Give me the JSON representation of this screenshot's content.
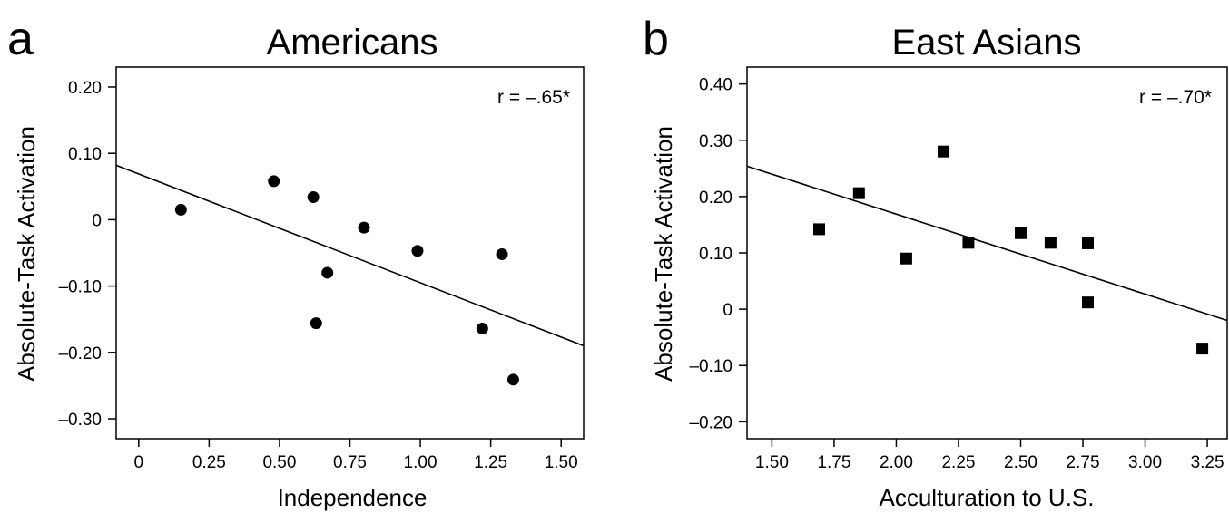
{
  "chart_data": [
    {
      "type": "scatter",
      "panel_label": "a",
      "title": "Americans",
      "xlabel": "Independence",
      "ylabel": "Absolute-Task Activation",
      "xlim": [
        -0.08,
        1.58
      ],
      "ylim": [
        -0.33,
        0.23
      ],
      "xticks": [
        0,
        0.25,
        0.5,
        0.75,
        1.0,
        1.25,
        1.5
      ],
      "xtick_labels": [
        "0",
        "0.25",
        "0.50",
        "0.75",
        "1.00",
        "1.25",
        "1.50"
      ],
      "yticks": [
        0.2,
        0.1,
        0,
        -0.1,
        -0.2,
        -0.3
      ],
      "ytick_labels": [
        "0.20",
        "0.10",
        "0",
        "–0.10",
        "–0.20",
        "–0.30"
      ],
      "marker": "circle",
      "points": [
        {
          "x": 0.15,
          "y": 0.015
        },
        {
          "x": 0.48,
          "y": 0.058
        },
        {
          "x": 0.62,
          "y": 0.034
        },
        {
          "x": 0.67,
          "y": -0.08
        },
        {
          "x": 0.63,
          "y": -0.156
        },
        {
          "x": 0.8,
          "y": -0.012
        },
        {
          "x": 0.99,
          "y": -0.047
        },
        {
          "x": 1.29,
          "y": -0.052
        },
        {
          "x": 1.22,
          "y": -0.164
        },
        {
          "x": 1.33,
          "y": -0.241
        }
      ],
      "fit_line": {
        "x1": -0.08,
        "y1": 0.082,
        "x2": 1.58,
        "y2": -0.19
      },
      "annotation": "r = –.65*",
      "grid": false
    },
    {
      "type": "scatter",
      "panel_label": "b",
      "title": "East Asians",
      "xlabel": "Acculturation to U.S.",
      "ylabel": "Absolute-Task Activation",
      "xlim": [
        1.4,
        3.33
      ],
      "ylim": [
        -0.23,
        0.43
      ],
      "xticks": [
        1.5,
        1.75,
        2.0,
        2.25,
        2.5,
        2.75,
        3.0,
        3.25
      ],
      "xtick_labels": [
        "1.50",
        "1.75",
        "2.00",
        "2.25",
        "2.50",
        "2.75",
        "3.00",
        "3.25"
      ],
      "yticks": [
        0.4,
        0.3,
        0.2,
        0.1,
        0,
        -0.1,
        -0.2
      ],
      "ytick_labels": [
        "0.40",
        "0.30",
        "0.20",
        "0.10",
        "0",
        "–0.10",
        "–0.20"
      ],
      "marker": "square",
      "points": [
        {
          "x": 1.69,
          "y": 0.142
        },
        {
          "x": 1.85,
          "y": 0.206
        },
        {
          "x": 2.04,
          "y": 0.09
        },
        {
          "x": 2.19,
          "y": 0.28
        },
        {
          "x": 2.29,
          "y": 0.118
        },
        {
          "x": 2.5,
          "y": 0.135
        },
        {
          "x": 2.62,
          "y": 0.118
        },
        {
          "x": 2.77,
          "y": 0.117
        },
        {
          "x": 2.77,
          "y": 0.012
        },
        {
          "x": 3.23,
          "y": -0.07
        }
      ],
      "fit_line": {
        "x1": 1.4,
        "y1": 0.254,
        "x2": 3.33,
        "y2": -0.02
      },
      "annotation": "r = –.70*",
      "grid": false
    }
  ]
}
